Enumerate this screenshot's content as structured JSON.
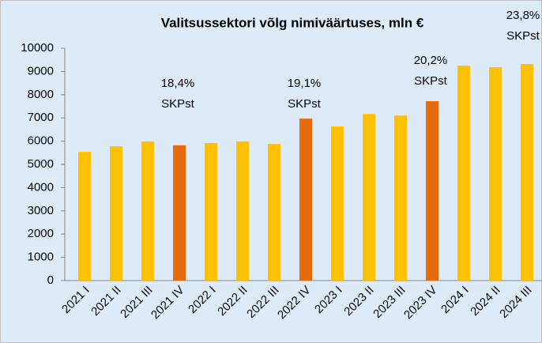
{
  "chart_data": {
    "type": "bar",
    "title": "Valitsussektori võlg nimiväärtuses, mln €",
    "categories": [
      "2021 I",
      "2021 II",
      "2021 III",
      "2021 IV",
      "2022 I",
      "2022 II",
      "2022 III",
      "2022 IV",
      "2023 I",
      "2023 II",
      "2023 III",
      "2023 IV",
      "2024 I",
      "2024 II",
      "2024 III"
    ],
    "values": [
      5540,
      5780,
      5990,
      5820,
      5920,
      5990,
      5880,
      6970,
      6630,
      7170,
      7100,
      7720,
      9250,
      9180,
      9320
    ],
    "colors": [
      "#ffc000",
      "#ffc000",
      "#ffc000",
      "#e46c0a",
      "#ffc000",
      "#ffc000",
      "#ffc000",
      "#e46c0a",
      "#ffc000",
      "#ffc000",
      "#ffc000",
      "#e46c0a",
      "#ffc000",
      "#ffc000",
      "#ffc000"
    ],
    "ylim": [
      0,
      10000
    ],
    "yticks": [
      0,
      1000,
      2000,
      3000,
      4000,
      5000,
      6000,
      7000,
      8000,
      9000,
      10000
    ],
    "grid": false,
    "annotations": [
      [
        "18,4%",
        "SKPst"
      ],
      [
        "19,1%",
        "SKPst"
      ],
      [
        "20,2%",
        "SKPst"
      ],
      [
        "23,8%",
        "SKPst"
      ]
    ]
  }
}
